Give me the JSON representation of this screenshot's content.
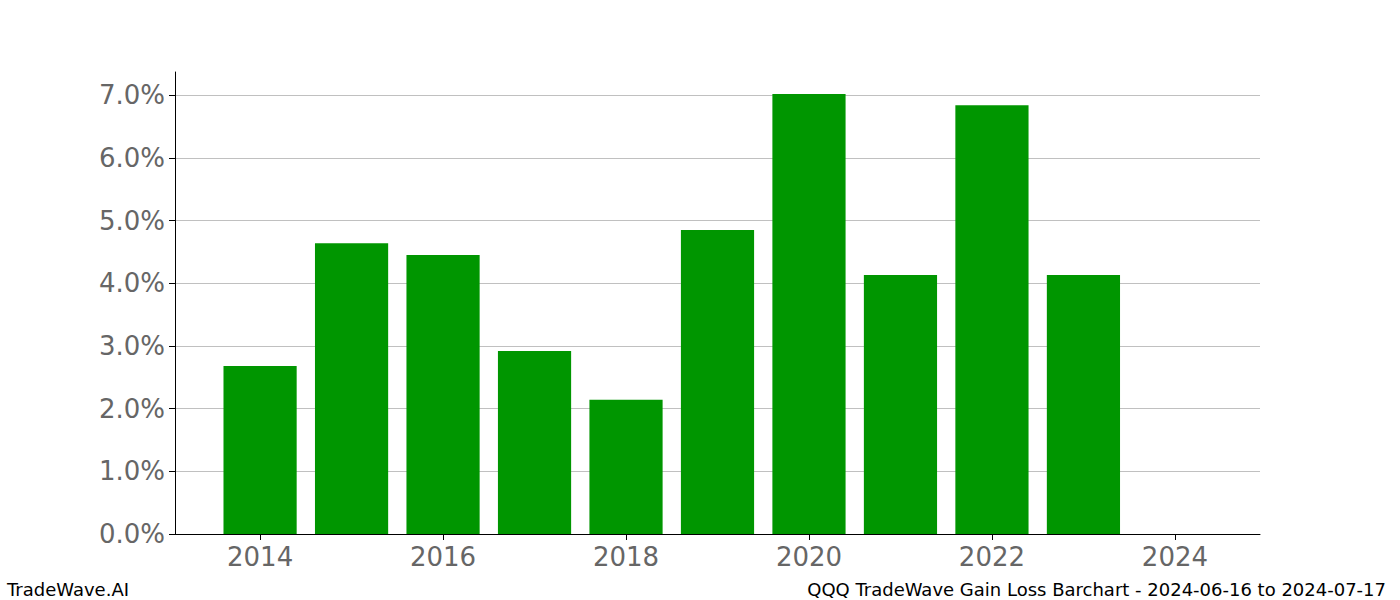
{
  "chart_data": {
    "type": "bar",
    "title": "QQQ TradeWave Gain Loss Barchart - 2024-06-16 to 2024-07-17",
    "annotations": [
      "TradeWave.AI"
    ],
    "x": [
      2014,
      2015,
      2016,
      2017,
      2018,
      2019,
      2020,
      2021,
      2022,
      2023
    ],
    "values": [
      2.68,
      4.64,
      4.45,
      2.92,
      2.14,
      4.85,
      7.02,
      4.13,
      6.84,
      4.13
    ],
    "color": "#009600",
    "xlim": [
      2013.07,
      2024.93
    ],
    "xticks": [
      2014,
      2016,
      2018,
      2020,
      2022,
      2024
    ],
    "ylim": [
      0,
      7.37
    ],
    "yticks": [
      {
        "value": 0,
        "label": "0.0%"
      },
      {
        "value": 1,
        "label": "1.0%"
      },
      {
        "value": 2,
        "label": "2.0%"
      },
      {
        "value": 3,
        "label": "3.0%"
      },
      {
        "value": 4,
        "label": "4.0%"
      },
      {
        "value": 5,
        "label": "5.0%"
      },
      {
        "value": 6,
        "label": "6.0%"
      },
      {
        "value": 7,
        "label": "7.0%"
      }
    ],
    "grid": true
  }
}
